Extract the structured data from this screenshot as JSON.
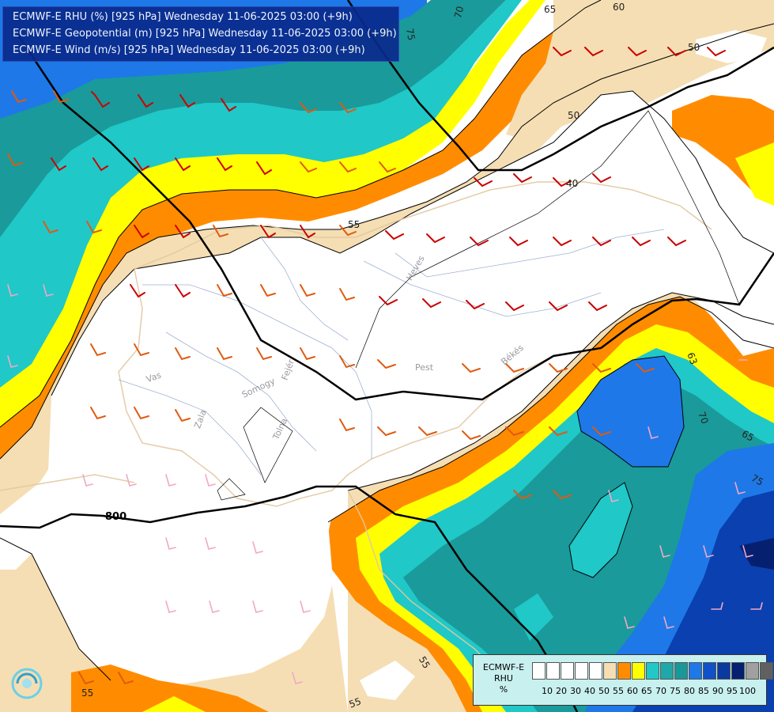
{
  "header": {
    "line1": "ECMWF-E RHU (%) [925 hPa] Wednesday 11-06-2025 03:00 (+9h)",
    "line2": "ECMWF-E Geopotential (m) [925 hPa] Wednesday 11-06-2025 03:00 (+9h)",
    "line3": "ECMWF-E Wind (m/s) [925 hPa] Wednesday 11-06-2025 03:00 (+9h)"
  },
  "legend": {
    "source": "ECMWF-E",
    "variable": "RHU",
    "unit": "%",
    "colors": [
      "#ffffff",
      "#ffffff",
      "#ffffff",
      "#ffffff",
      "#ffffff",
      "#f5deb3",
      "#ff8c00",
      "#ffff00",
      "#20c8c8",
      "#20a8a8",
      "#1a9898",
      "#1e78e8",
      "#1050c8",
      "#0a3aa0",
      "#062070",
      "#a0a0a0",
      "#606060"
    ],
    "ticks": [
      "10",
      "20",
      "30",
      "40",
      "50",
      "55",
      "60",
      "65",
      "70",
      "75",
      "80",
      "85",
      "90",
      "95",
      "100"
    ]
  },
  "contour_labels": {
    "c70": "70",
    "c75": "75",
    "c65a": "65",
    "c60": "60",
    "c50a": "50",
    "c50b": "50",
    "c40": "40",
    "c55a": "55",
    "c63": "63",
    "c70b": "70",
    "c65b": "65",
    "c75b": "75",
    "c800": "800",
    "c55b": "55",
    "c55c": "55",
    "c55d": "55"
  },
  "place_labels": {
    "heves": "Heves",
    "pest": "Pest",
    "bekes": "Békés",
    "vas": "Vas",
    "somogy": "Somogy",
    "zala": "Zala",
    "tolna": "Tolna",
    "fejer": "Fejér"
  },
  "colors": {
    "white": "#ffffff",
    "tan": "#f5deb3",
    "orange": "#ff8c00",
    "yellow": "#ffff00",
    "cyan": "#20c8c8",
    "teal": "#1a9a9a",
    "blue": "#1e78e8",
    "darkblue": "#0a40b0",
    "navy": "#062070"
  }
}
